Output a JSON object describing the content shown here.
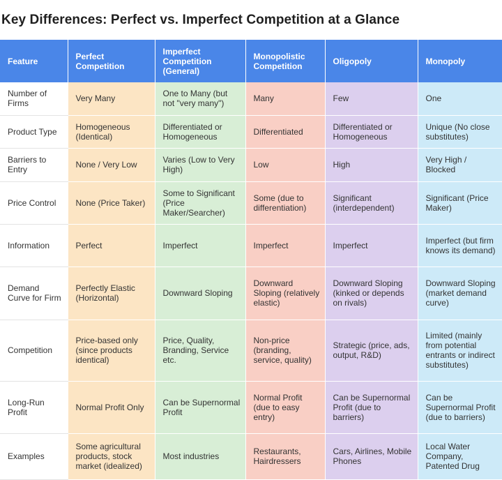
{
  "title": "Key Differences: Perfect vs. Imperfect Competition at a Glance",
  "colors": {
    "header": "#4a86e8",
    "perfect": "#fce5c4",
    "imperfect_general": "#d8eed6",
    "monopolistic": "#f9cfc5",
    "oligopoly": "#dccfee",
    "monopoly": "#cdeaf8"
  },
  "headers": [
    "Feature",
    "Perfect Competition",
    "Imperfect Competition (General)",
    "Monopolistic Competition",
    "Oligopoly",
    "Monopoly"
  ],
  "rows": [
    [
      "Number of Firms",
      "Very Many",
      "One to Many (but not \"very many\")",
      "Many",
      "Few",
      "One"
    ],
    [
      "Product Type",
      "Homogeneous (Identical)",
      "Differentiated or Homogeneous",
      "Differentiated",
      "Differentiated or Homogeneous",
      "Unique (No close substitutes)"
    ],
    [
      "Barriers to Entry",
      "None / Very Low",
      "Varies (Low to Very High)",
      "Low",
      "High",
      "Very High / Blocked"
    ],
    [
      "Price Control",
      "None (Price Taker)",
      "Some to Significant (Price Maker/Searcher)",
      "Some (due to differentiation)",
      "Significant (interdependent)",
      "Significant (Price Maker)"
    ],
    [
      "Information",
      "Perfect",
      "Imperfect",
      "Imperfect",
      "Imperfect",
      "Imperfect (but firm knows its demand)"
    ],
    [
      "Demand Curve for Firm",
      "Perfectly Elastic (Horizontal)",
      "Downward Sloping",
      "Downward Sloping (relatively elastic)",
      "Downward Sloping (kinked or depends on rivals)",
      "Downward Sloping (market demand curve)"
    ],
    [
      "Competition",
      "Price-based only (since products identical)",
      "Price, Quality, Branding, Service etc.",
      "Non-price (branding, service, quality)",
      "Strategic (price, ads, output, R&D)",
      "Limited (mainly from potential entrants or indirect substitutes)"
    ],
    [
      "Long-Run Profit",
      "Normal Profit Only",
      "Can be Supernormal Profit",
      "Normal Profit (due to easy entry)",
      "Can be Supernormal Profit (due to barriers)",
      "Can be Supernormal Profit (due to barriers)"
    ],
    [
      "Examples",
      "Some agricultural products, stock market (idealized)",
      "Most industries",
      "Restaurants, Hairdressers",
      "Cars, Airlines, Mobile Phones",
      "Local Water Company, Patented Drug"
    ]
  ]
}
